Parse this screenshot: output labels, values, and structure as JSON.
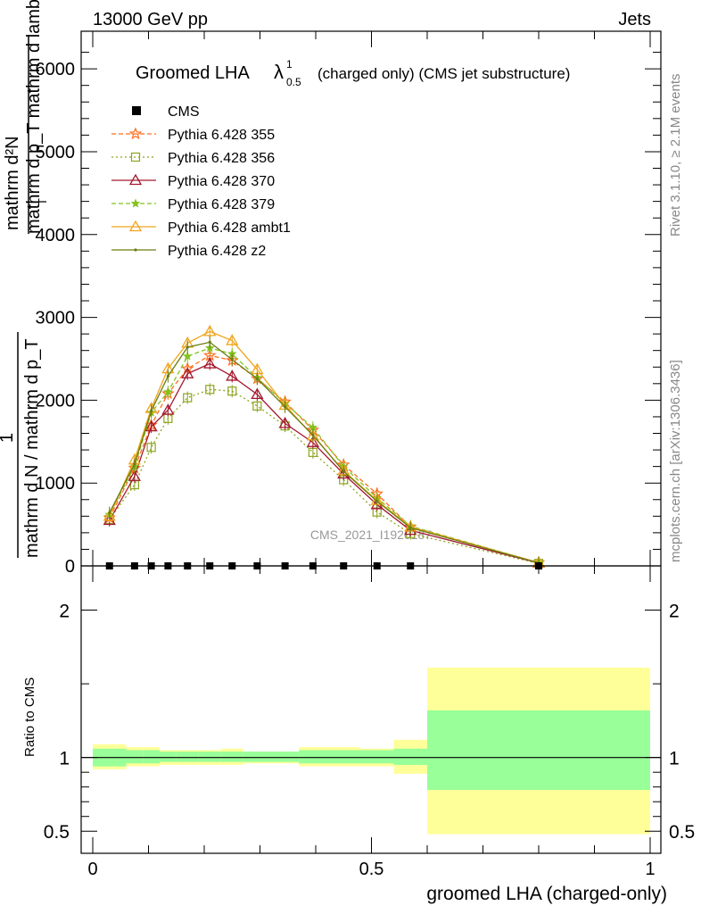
{
  "header": {
    "left": "13000 GeV pp",
    "right": "Jets"
  },
  "side": {
    "top": "Rivet 3.1.10, ≥ 2.1M events",
    "bottom": "mcplots.cern.ch [arXiv:1306.3436]"
  },
  "chart_data": {
    "type": "line",
    "title": {
      "main": "Groomed LHA",
      "lambda": "λ",
      "sup": "1",
      "sub": "0.5",
      "rest": "(charged only) (CMS jet substructure)"
    },
    "ylabel_top": "mathrm d²N",
    "ylabel_bottom": "mathrm d p_T mathrm d lambda",
    "ylabel_sub": "T",
    "ylabel_one": "1",
    "ylabel_den": "mathrm d N / mathrm d p_T",
    "watermark": "CMS_2021_I1920187",
    "xlabel": "groomed LHA (charged-only)",
    "ratio_ylabel": "Ratio to CMS",
    "xlim": [
      0,
      1
    ],
    "ylim": [
      0,
      6400
    ],
    "ratio_ylim": [
      0.35,
      2.3
    ],
    "xticks": [
      "0",
      "0.5",
      "1"
    ],
    "yticks": [
      "0",
      "1000",
      "2000",
      "3000",
      "4000",
      "5000",
      "6000"
    ],
    "ratio_yticks": [
      "0.5",
      "1",
      "2"
    ],
    "x": [
      0.03,
      0.075,
      0.105,
      0.135,
      0.17,
      0.21,
      0.25,
      0.295,
      0.345,
      0.395,
      0.45,
      0.51,
      0.57,
      0.8
    ],
    "data": {
      "name": "CMS",
      "values": [
        0,
        0,
        0,
        0,
        0,
        0,
        0,
        0,
        0,
        0,
        0,
        0,
        0,
        0
      ],
      "bins": [
        [
          0.0,
          0.06
        ],
        [
          0.06,
          0.09
        ],
        [
          0.09,
          0.12
        ],
        [
          0.12,
          0.15
        ],
        [
          0.15,
          0.19
        ],
        [
          0.19,
          0.23
        ],
        [
          0.23,
          0.27
        ],
        [
          0.27,
          0.32
        ],
        [
          0.32,
          0.37
        ],
        [
          0.37,
          0.42
        ],
        [
          0.42,
          0.48
        ],
        [
          0.48,
          0.54
        ],
        [
          0.54,
          0.6
        ],
        [
          0.6,
          1.0
        ]
      ]
    },
    "ratio_bands": {
      "inner": [
        [
          0.94,
          1.06
        ],
        [
          0.96,
          1.05
        ],
        [
          0.96,
          1.05
        ],
        [
          0.97,
          1.04
        ],
        [
          0.97,
          1.04
        ],
        [
          0.97,
          1.04
        ],
        [
          0.97,
          1.04
        ],
        [
          0.97,
          1.04
        ],
        [
          0.97,
          1.04
        ],
        [
          0.96,
          1.05
        ],
        [
          0.96,
          1.05
        ],
        [
          0.96,
          1.05
        ],
        [
          0.95,
          1.06
        ],
        [
          0.78,
          1.32
        ]
      ],
      "outer": [
        [
          0.92,
          1.09
        ],
        [
          0.94,
          1.07
        ],
        [
          0.94,
          1.07
        ],
        [
          0.95,
          1.05
        ],
        [
          0.95,
          1.05
        ],
        [
          0.95,
          1.05
        ],
        [
          0.95,
          1.06
        ],
        [
          0.96,
          1.04
        ],
        [
          0.96,
          1.04
        ],
        [
          0.94,
          1.07
        ],
        [
          0.94,
          1.07
        ],
        [
          0.94,
          1.06
        ],
        [
          0.89,
          1.12
        ],
        [
          0.48,
          1.61
        ]
      ]
    },
    "series": [
      {
        "name": "Pythia 6.428 355",
        "color": "#ff6e1f",
        "dash": "5,3",
        "marker": "star",
        "values": [
          580,
          1180,
          1700,
          2080,
          2380,
          2540,
          2480,
          2260,
          1980,
          1640,
          1220,
          870,
          470,
          40
        ]
      },
      {
        "name": "Pythia 6.428 356",
        "color": "#8ca51d",
        "dash": "2,3",
        "marker": "square",
        "values": [
          560,
          980,
          1430,
          1780,
          2030,
          2130,
          2110,
          1930,
          1690,
          1370,
          1040,
          650,
          390,
          30
        ]
      },
      {
        "name": "Pythia 6.428 370",
        "color": "#a3192f",
        "dash": "",
        "marker": "triangle",
        "values": [
          550,
          1080,
          1680,
          1880,
          2320,
          2440,
          2290,
          2070,
          1720,
          1490,
          1110,
          740,
          430,
          35
        ]
      },
      {
        "name": "Pythia 6.428 379",
        "color": "#82c31e",
        "dash": "5,3",
        "marker": "smallstar",
        "values": [
          620,
          1200,
          1850,
          2100,
          2530,
          2630,
          2560,
          2270,
          1960,
          1670,
          1200,
          820,
          480,
          40
        ]
      },
      {
        "name": "Pythia 6.428 ambt1",
        "color": "#f0a51d",
        "dash": "",
        "marker": "triangle",
        "values": [
          600,
          1280,
          1900,
          2380,
          2690,
          2830,
          2720,
          2370,
          1940,
          1570,
          1150,
          790,
          470,
          38
        ]
      },
      {
        "name": "Pythia 6.428 z2",
        "color": "#6b7d12",
        "dash": "",
        "marker": "dot",
        "values": [
          640,
          1230,
          1870,
          2290,
          2640,
          2700,
          2490,
          2260,
          1920,
          1580,
          1140,
          780,
          460,
          36
        ]
      }
    ]
  }
}
